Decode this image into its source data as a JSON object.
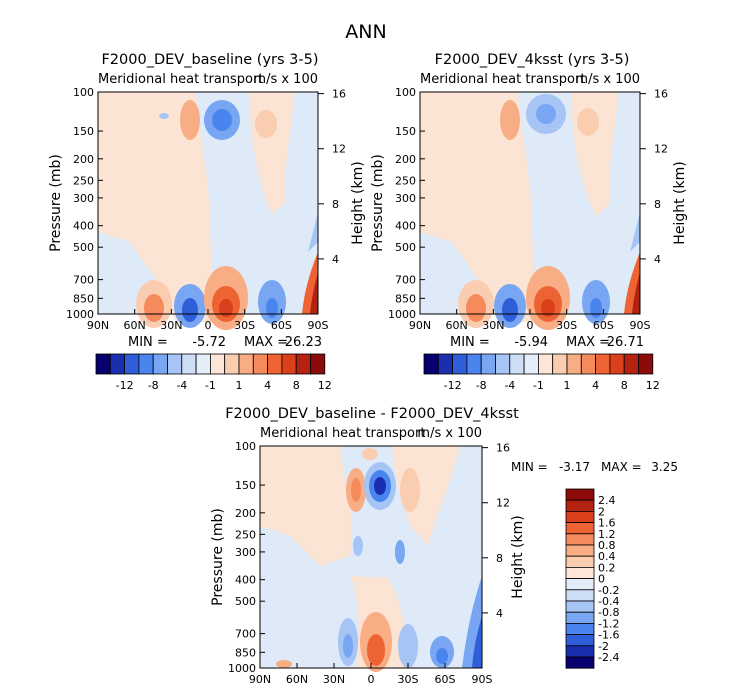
{
  "figure_title": "ANN",
  "chart_data": [
    {
      "type": "heatmap",
      "title": "F2000_DEV_baseline (yrs 3-5)",
      "subtitle": "Meridional heat transport",
      "units": "m/s x 100",
      "ylabel": "Pressure (mb)",
      "ylabel_right": "Height (km)",
      "x_ticks": [
        "90N",
        "60N",
        "30N",
        "0",
        "30S",
        "60S",
        "90S"
      ],
      "y_ticks": [
        "100",
        "150",
        "200",
        "250",
        "300",
        "400",
        "500",
        "700",
        "850",
        "1000"
      ],
      "y_ticks_right": [
        "16",
        "12",
        "8",
        "4"
      ],
      "ylim": [
        1000,
        100
      ],
      "min_label": "MIN =",
      "min": "-5.72",
      "max_label": "MAX =",
      "max": "26.23",
      "contour_levels": [
        "-12",
        "-8",
        "-4",
        "-1",
        "1",
        "4",
        "8",
        "12"
      ]
    },
    {
      "type": "heatmap",
      "title": "F2000_DEV_4ksst (yrs 3-5)",
      "subtitle": "Meridional heat transport",
      "units": "m/s x 100",
      "ylabel": "Pressure (mb)",
      "ylabel_right": "Height (km)",
      "x_ticks": [
        "90N",
        "60N",
        "30N",
        "0",
        "30S",
        "60S",
        "90S"
      ],
      "y_ticks": [
        "100",
        "150",
        "200",
        "250",
        "300",
        "400",
        "500",
        "700",
        "850",
        "1000"
      ],
      "y_ticks_right": [
        "16",
        "12",
        "8",
        "4"
      ],
      "ylim": [
        1000,
        100
      ],
      "min_label": "MIN =",
      "min": "-5.94",
      "max_label": "MAX =",
      "max": "26.71",
      "contour_levels": [
        "-12",
        "-8",
        "-4",
        "-1",
        "1",
        "4",
        "8",
        "12"
      ]
    },
    {
      "type": "heatmap",
      "title": "F2000_DEV_baseline - F2000_DEV_4ksst",
      "subtitle": "Meridional heat transport",
      "units": "m/s x 100",
      "ylabel": "Pressure (mb)",
      "ylabel_right": "Height (km)",
      "x_ticks": [
        "90N",
        "60N",
        "30N",
        "0",
        "30S",
        "60S",
        "90S"
      ],
      "y_ticks": [
        "100",
        "150",
        "200",
        "250",
        "300",
        "400",
        "500",
        "700",
        "850",
        "1000"
      ],
      "y_ticks_right": [
        "16",
        "12",
        "8",
        "4"
      ],
      "ylim": [
        1000,
        100
      ],
      "min_label": "MIN =",
      "min": "-3.17",
      "max_label": "MAX =",
      "max": "3.25",
      "contour_levels": [
        "2.4",
        "2",
        "1.6",
        "1.2",
        "0.8",
        "0.4",
        "0.2",
        "0",
        "-0.2",
        "-0.4",
        "-0.8",
        "-1.2",
        "-1.6",
        "-2",
        "-2.4"
      ]
    }
  ],
  "colors": {
    "palette_16": [
      "#08006f",
      "#1a2fb0",
      "#2f5fd8",
      "#4a84ee",
      "#78a6f2",
      "#a6c4f4",
      "#cddff6",
      "#e4eefa",
      "#fde6d8",
      "#fbcdb0",
      "#f8ad85",
      "#f58a5c",
      "#ee6333",
      "#d9401b",
      "#b42212",
      "#8c0a0a"
    ],
    "neutral_blue": "#dfeaf8",
    "neutral_orange": "#fce4d4"
  }
}
